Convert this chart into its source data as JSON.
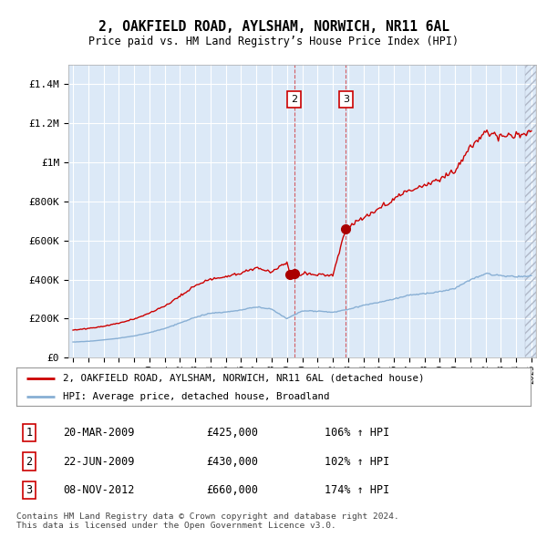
{
  "title": "2, OAKFIELD ROAD, AYLSHAM, NORWICH, NR11 6AL",
  "subtitle": "Price paid vs. HM Land Registry’s House Price Index (HPI)",
  "legend_property": "2, OAKFIELD ROAD, AYLSHAM, NORWICH, NR11 6AL (detached house)",
  "legend_hpi": "HPI: Average price, detached house, Broadland",
  "footer1": "Contains HM Land Registry data © Crown copyright and database right 2024.",
  "footer2": "This data is licensed under the Open Government Licence v3.0.",
  "sales": [
    {
      "num": 1,
      "date": "20-MAR-2009",
      "price": 425000,
      "pct": "106%",
      "year": 2009.22,
      "show_vline": false
    },
    {
      "num": 2,
      "date": "22-JUN-2009",
      "price": 430000,
      "pct": "102%",
      "year": 2009.47,
      "show_vline": true
    },
    {
      "num": 3,
      "date": "08-NOV-2012",
      "price": 660000,
      "pct": "174%",
      "year": 2012.85,
      "show_vline": true
    }
  ],
  "ylim": [
    0,
    1500000
  ],
  "xlim": [
    1994.7,
    2025.3
  ],
  "yticks": [
    0,
    200000,
    400000,
    600000,
    800000,
    1000000,
    1200000,
    1400000
  ],
  "ytick_labels": [
    "£0",
    "£200K",
    "£400K",
    "£600K",
    "£800K",
    "£1M",
    "£1.2M",
    "£1.4M"
  ],
  "plot_bg": "#dce9f7",
  "red_color": "#cc0000",
  "blue_color": "#88afd4",
  "sale_marker_color": "#aa0000",
  "grid_color": "#ffffff",
  "hatch_color": "#b0b8c8"
}
